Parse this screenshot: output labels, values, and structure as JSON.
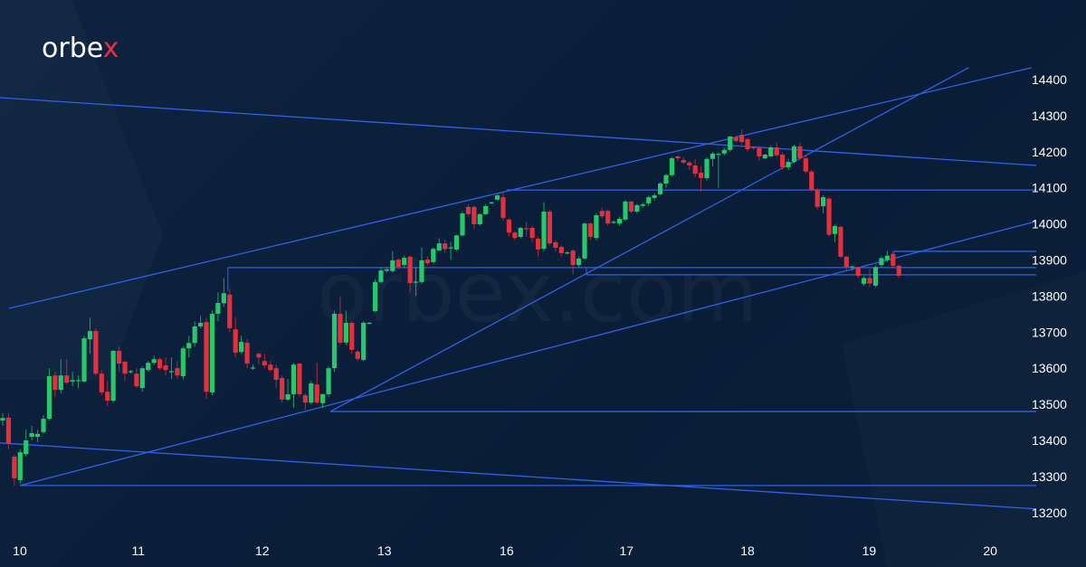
{
  "brand": {
    "logo_text": "orbex",
    "watermark": "orbex.com"
  },
  "colors": {
    "background": "#0b1f3a",
    "bull": "#27c76b",
    "bear": "#e3303f",
    "lines": "#2f62e6",
    "text": "#ffffff"
  },
  "chart_data": {
    "type": "candlestick",
    "title": "",
    "xlabel": "",
    "ylabel": "",
    "ylim": [
      13150,
      14450
    ],
    "y_ticks": [
      14400,
      14300,
      14200,
      14100,
      14000,
      13900,
      13800,
      13700,
      13600,
      13500,
      13400,
      13300,
      13200
    ],
    "x_ticks": [
      {
        "label": "10",
        "bar": 2.95
      },
      {
        "label": "11",
        "bar": 23.3
      },
      {
        "label": "12",
        "bar": 44.6
      },
      {
        "label": "13",
        "bar": 65.6
      },
      {
        "label": "16",
        "bar": 86.6
      },
      {
        "label": "17",
        "bar": 107.2
      },
      {
        "label": "18",
        "bar": 128
      },
      {
        "label": "19",
        "bar": 148.9
      },
      {
        "label": "20",
        "bar": 169.7
      }
    ],
    "grid": false,
    "candles_ohlc": [
      [
        13455,
        13475,
        13440,
        13462
      ],
      [
        13463,
        13475,
        13375,
        13390
      ],
      [
        13355,
        13360,
        13275,
        13295
      ],
      [
        13290,
        13375,
        13280,
        13367
      ],
      [
        13362,
        13430,
        13355,
        13400
      ],
      [
        13410,
        13440,
        13400,
        13420
      ],
      [
        13410,
        13430,
        13395,
        13418
      ],
      [
        13423,
        13470,
        13420,
        13460
      ],
      [
        13460,
        13600,
        13455,
        13578
      ],
      [
        13580,
        13590,
        13520,
        13540
      ],
      [
        13540,
        13625,
        13530,
        13580
      ],
      [
        13580,
        13625,
        13555,
        13560
      ],
      [
        13563,
        13590,
        13550,
        13567
      ],
      [
        13565,
        13580,
        13545,
        13567
      ],
      [
        13563,
        13690,
        13560,
        13683
      ],
      [
        13680,
        13740,
        13640,
        13703
      ],
      [
        13703,
        13710,
        13580,
        13585
      ],
      [
        13585,
        13595,
        13525,
        13533
      ],
      [
        13535,
        13565,
        13495,
        13510
      ],
      [
        13510,
        13650,
        13505,
        13648
      ],
      [
        13648,
        13660,
        13590,
        13613
      ],
      [
        13618,
        13620,
        13565,
        13585
      ],
      [
        13590,
        13595,
        13585,
        13592
      ],
      [
        13585,
        13600,
        13545,
        13550
      ],
      [
        13545,
        13605,
        13535,
        13600
      ],
      [
        13595,
        13620,
        13590,
        13615
      ],
      [
        13615,
        13635,
        13610,
        13625
      ],
      [
        13625,
        13630,
        13595,
        13600
      ],
      [
        13608,
        13630,
        13580,
        13595
      ],
      [
        13592,
        13630,
        13570,
        13592
      ],
      [
        13600,
        13620,
        13570,
        13580
      ],
      [
        13578,
        13660,
        13570,
        13655
      ],
      [
        13655,
        13690,
        13630,
        13670
      ],
      [
        13670,
        13730,
        13660,
        13716
      ],
      [
        13716,
        13745,
        13710,
        13726
      ],
      [
        13728,
        13740,
        13515,
        13535
      ],
      [
        13533,
        13760,
        13525,
        13751
      ],
      [
        13751,
        13810,
        13730,
        13781
      ],
      [
        13780,
        13850,
        13770,
        13808
      ],
      [
        13804,
        13820,
        13700,
        13711
      ],
      [
        13708,
        13740,
        13630,
        13643
      ],
      [
        13645,
        13690,
        13640,
        13673
      ],
      [
        13671,
        13680,
        13600,
        13613
      ],
      [
        13600,
        13610,
        13595,
        13602
      ],
      [
        13640,
        13645,
        13610,
        13630
      ],
      [
        13620,
        13640,
        13600,
        13608
      ],
      [
        13610,
        13620,
        13590,
        13595
      ],
      [
        13600,
        13610,
        13545,
        13568
      ],
      [
        13573,
        13580,
        13505,
        13513
      ],
      [
        13513,
        13570,
        13510,
        13528
      ],
      [
        13528,
        13615,
        13490,
        13610
      ],
      [
        13613,
        13615,
        13520,
        13528
      ],
      [
        13525,
        13530,
        13485,
        13505
      ],
      [
        13505,
        13565,
        13500,
        13558
      ],
      [
        13555,
        13615,
        13500,
        13505
      ],
      [
        13503,
        13530,
        13490,
        13528
      ],
      [
        13528,
        13605,
        13520,
        13600
      ],
      [
        13600,
        13760,
        13590,
        13751
      ],
      [
        13751,
        13800,
        13665,
        13671
      ],
      [
        13671,
        13760,
        13665,
        13726
      ],
      [
        13726,
        13730,
        13640,
        13651
      ],
      [
        13646,
        13650,
        13620,
        13626
      ],
      [
        13623,
        13730,
        13620,
        13726
      ],
      [
        13725,
        13728,
        13722,
        13726
      ],
      [
        13758,
        13845,
        13755,
        13839
      ],
      [
        13839,
        13880,
        13835,
        13871
      ],
      [
        13870,
        13880,
        13865,
        13874
      ],
      [
        13869,
        13925,
        13865,
        13899
      ],
      [
        13901,
        13905,
        13875,
        13881
      ],
      [
        13886,
        13912,
        13880,
        13906
      ],
      [
        13909,
        13912,
        13810,
        13836
      ],
      [
        13838,
        13880,
        13800,
        13840
      ],
      [
        13839,
        13935,
        13835,
        13899
      ],
      [
        13901,
        13910,
        13885,
        13891
      ],
      [
        13894,
        13935,
        13890,
        13931
      ],
      [
        13926,
        13960,
        13925,
        13946
      ],
      [
        13946,
        13955,
        13920,
        13930
      ],
      [
        13935,
        13950,
        13900,
        13935
      ],
      [
        13929,
        13970,
        13925,
        13968
      ],
      [
        13968,
        14035,
        13965,
        14029
      ],
      [
        14047,
        14055,
        14020,
        14027
      ],
      [
        14047,
        14050,
        13985,
        13999
      ],
      [
        13999,
        14030,
        13995,
        14027
      ],
      [
        14027,
        14055,
        14025,
        14049
      ],
      [
        14059,
        14062,
        14055,
        14060
      ],
      [
        14067,
        14082,
        14065,
        14079
      ],
      [
        14074,
        14090,
        14010,
        14017
      ],
      [
        14012,
        14015,
        13965,
        13976
      ],
      [
        13976,
        13980,
        13955,
        13961
      ],
      [
        13964,
        13992,
        13960,
        13989
      ],
      [
        13988,
        14005,
        13965,
        13987
      ],
      [
        13989,
        13995,
        13950,
        13961
      ],
      [
        13959,
        13965,
        13910,
        13929
      ],
      [
        13931,
        14060,
        13925,
        14034
      ],
      [
        14034,
        14040,
        13940,
        13946
      ],
      [
        13949,
        13955,
        13925,
        13934
      ],
      [
        13936,
        13940,
        13910,
        13919
      ],
      [
        13921,
        13925,
        13915,
        13921
      ],
      [
        13926,
        13930,
        13860,
        13886
      ],
      [
        13886,
        13910,
        13880,
        13904
      ],
      [
        13904,
        14005,
        13900,
        14001
      ],
      [
        14001,
        14005,
        13955,
        13964
      ],
      [
        13961,
        14030,
        13955,
        14024
      ],
      [
        14036,
        14045,
        14015,
        14021
      ],
      [
        14036,
        14040,
        13995,
        14001
      ],
      [
        14004,
        14010,
        14000,
        14006
      ],
      [
        14001,
        14020,
        13995,
        14014
      ],
      [
        14012,
        14066,
        14008,
        14062
      ],
      [
        14062,
        14065,
        14030,
        14034
      ],
      [
        14034,
        14056,
        14030,
        14052
      ],
      [
        14050,
        14060,
        14045,
        14054
      ],
      [
        14057,
        14078,
        14050,
        14074
      ],
      [
        14072,
        14085,
        14065,
        14079
      ],
      [
        14082,
        14116,
        14080,
        14112
      ],
      [
        14112,
        14140,
        14100,
        14135
      ],
      [
        14135,
        14186,
        14130,
        14182
      ],
      [
        14187,
        14190,
        14175,
        14182
      ],
      [
        14177,
        14185,
        14165,
        14170
      ],
      [
        14170,
        14175,
        14150,
        14162
      ],
      [
        14162,
        14180,
        14130,
        14139
      ],
      [
        14142,
        14160,
        14090,
        14127
      ],
      [
        14127,
        14185,
        14120,
        14180
      ],
      [
        14180,
        14200,
        14160,
        14195
      ],
      [
        14194,
        14198,
        14100,
        14194
      ],
      [
        14195,
        14210,
        14190,
        14205
      ],
      [
        14205,
        14245,
        14200,
        14242
      ],
      [
        14240,
        14245,
        14225,
        14230
      ],
      [
        14247,
        14262,
        14220,
        14227
      ],
      [
        14235,
        14238,
        14200,
        14207
      ],
      [
        14213,
        14215,
        14205,
        14210
      ],
      [
        14210,
        14215,
        14175,
        14187
      ],
      [
        14182,
        14195,
        14180,
        14192
      ],
      [
        14187,
        14218,
        14185,
        14212
      ],
      [
        14212,
        14225,
        14185,
        14190
      ],
      [
        14192,
        14198,
        14150,
        14157
      ],
      [
        14157,
        14180,
        14150,
        14172
      ],
      [
        14172,
        14220,
        14168,
        14215
      ],
      [
        14215,
        14225,
        14178,
        14182
      ],
      [
        14182,
        14190,
        14140,
        14145
      ],
      [
        14145,
        14150,
        14090,
        14095
      ],
      [
        14095,
        14100,
        14040,
        14047
      ],
      [
        14049,
        14080,
        14030,
        14074
      ],
      [
        14070,
        14075,
        13965,
        13970
      ],
      [
        13972,
        13998,
        13950,
        13994
      ],
      [
        13992,
        13995,
        13905,
        13909
      ],
      [
        13909,
        13912,
        13870,
        13881
      ],
      [
        13880,
        13885,
        13870,
        13882
      ],
      [
        13879,
        13882,
        13850,
        13856
      ],
      [
        13834,
        13855,
        13828,
        13850
      ],
      [
        13850,
        13875,
        13825,
        13835
      ],
      [
        13829,
        13885,
        13825,
        13880
      ],
      [
        13886,
        13910,
        13880,
        13905
      ],
      [
        13900,
        13925,
        13895,
        13912
      ],
      [
        13917,
        13920,
        13880,
        13884
      ],
      [
        13884,
        13888,
        13850,
        13856
      ]
    ],
    "trend_lines": [
      {
        "name": "upper-descending-line",
        "from": [
          -0.5,
          14350
        ],
        "to": [
          177.6,
          14162
        ]
      },
      {
        "name": "upper-channel-line",
        "from": [
          1.1,
          13766
        ],
        "to": [
          176.8,
          14433
        ]
      },
      {
        "name": "steep-support-line",
        "from": [
          56.3,
          13480
        ],
        "to": [
          166,
          14433
        ]
      },
      {
        "name": "lower-rising-line",
        "from": [
          2.95,
          13275
        ],
        "to": [
          177.6,
          14007
        ]
      },
      {
        "name": "lower-descending-line",
        "from": [
          -0.5,
          13393
        ],
        "to": [
          177.6,
          13210
        ]
      }
    ],
    "horizontal_levels": [
      {
        "name": "level-13275",
        "price": 13275,
        "from_bar": 2.95
      },
      {
        "name": "level-13480",
        "price": 13480,
        "from_bar": 56.3
      },
      {
        "name": "level-13879",
        "price": 13879,
        "from_bar": 38.7,
        "drop_to": 13815
      },
      {
        "name": "level-13859",
        "price": 13859,
        "from_bar": 100.3,
        "drop_to": 13879
      },
      {
        "name": "level-14094",
        "price": 14094,
        "from_bar": 86.6
      },
      {
        "name": "level-13924",
        "price": 13924,
        "from_bar": 153,
        "drop_to": 13905
      }
    ],
    "end_bar": 177.6
  }
}
